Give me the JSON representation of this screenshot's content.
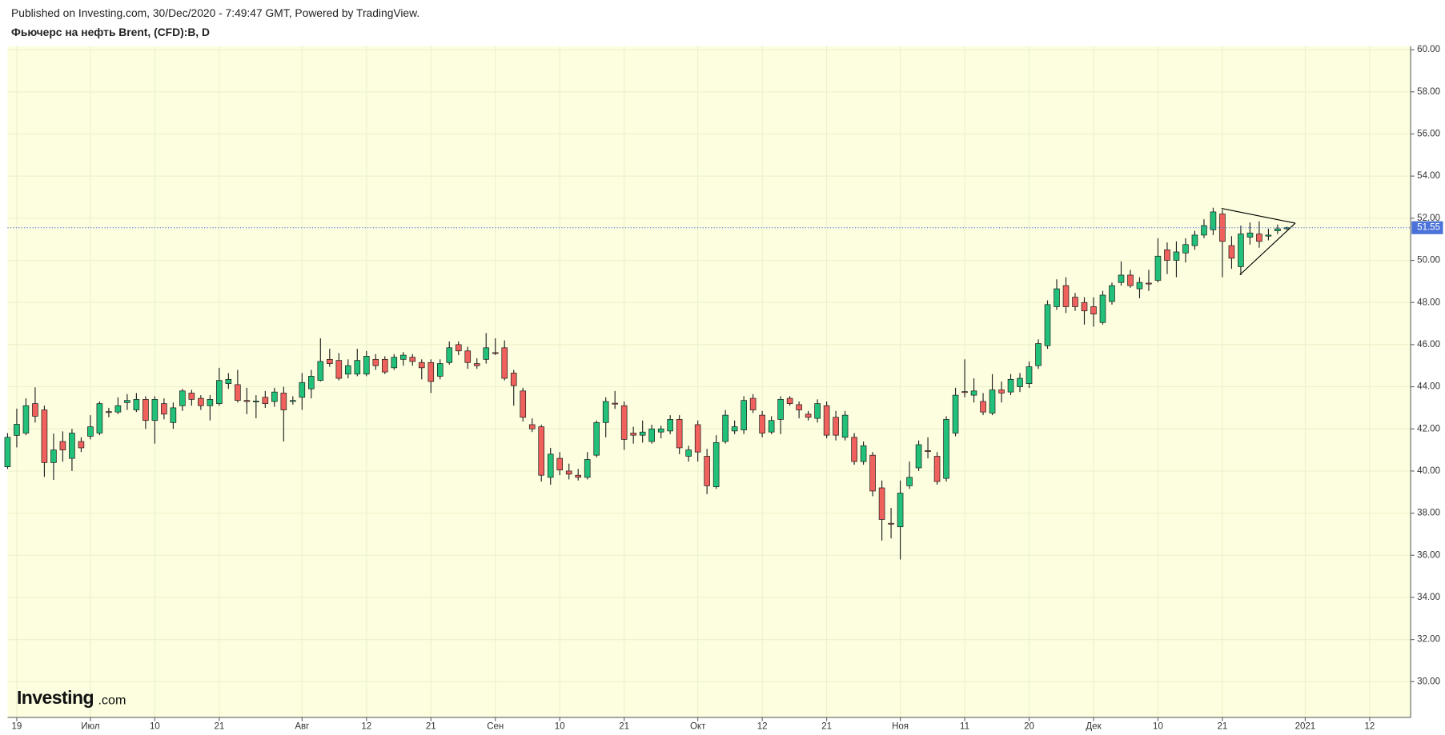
{
  "chart_data": {
    "type": "candlestick",
    "subtitle": "Published on Investing.com, 30/Dec/2020 - 7:49:47 GMT, Powered by TradingView.",
    "title": "Фьючерс на нефть Brent, (CFD):B, D",
    "watermark": [
      "Investing",
      ".com"
    ],
    "up_color": "#22c17a",
    "down_color": "#f0605c",
    "grid": true,
    "categories": [
      null,
      "19",
      null,
      null,
      null,
      null,
      null,
      null,
      null,
      "Июл",
      null,
      null,
      null,
      null,
      null,
      null,
      "10",
      null,
      null,
      null,
      null,
      null,
      null,
      "21",
      null,
      null,
      null,
      null,
      null,
      null,
      null,
      null,
      "Авг",
      null,
      null,
      null,
      null,
      null,
      null,
      "12",
      null,
      null,
      null,
      null,
      null,
      null,
      "21",
      null,
      null,
      null,
      null,
      null,
      null,
      "Сен",
      null,
      null,
      null,
      null,
      null,
      null,
      "10",
      null,
      null,
      null,
      null,
      null,
      null,
      "21",
      null,
      null,
      null,
      null,
      null,
      null,
      null,
      "Окт",
      null,
      null,
      null,
      null,
      null,
      null,
      "12",
      null,
      null,
      null,
      null,
      null,
      null,
      "21",
      null,
      null,
      null,
      null,
      null,
      null,
      null,
      "Ноя",
      null,
      null,
      null,
      null,
      null,
      null,
      "11",
      null,
      null,
      null,
      null,
      null,
      null,
      "20",
      null,
      null,
      null,
      null,
      null,
      null,
      "Дек",
      null,
      null,
      null,
      null,
      null,
      null,
      "10",
      null,
      null,
      null,
      null,
      null,
      null,
      "21",
      null,
      null,
      null,
      null,
      null,
      null,
      null,
      null,
      "2021",
      null,
      null,
      null,
      null,
      null,
      null,
      "12",
      null,
      null,
      null
    ],
    "open": [
      40.2,
      41.69,
      41.8,
      43.2,
      42.9,
      40.4,
      41.4,
      40.6,
      41.4,
      41.65,
      41.8,
      42.82,
      42.8,
      43.25,
      42.9,
      43.4,
      42.4,
      43.2,
      42.3,
      43.1,
      43.7,
      43.45,
      43.1,
      43.2,
      44.15,
      44.1,
      43.35,
      43.3,
      43.5,
      43.3,
      43.7,
      43.3,
      43.5,
      43.9,
      44.3,
      45.3,
      45.25,
      44.6,
      44.6,
      44.6,
      45.3,
      45.3,
      44.9,
      45.3,
      45.4,
      45.15,
      45.15,
      44.5,
      45.15,
      46.0,
      45.7,
      45.1,
      45.3,
      45.62,
      45.85,
      44.65,
      43.8,
      42.2,
      42.1,
      39.7,
      40.6,
      40.0,
      39.8,
      39.7,
      40.75,
      42.3,
      43.22,
      43.1,
      41.8,
      41.7,
      41.4,
      41.85,
      41.9,
      42.45,
      40.7,
      42.2,
      40.7,
      39.25,
      41.4,
      41.9,
      41.95,
      43.45,
      42.65,
      41.85,
      42.45,
      43.45,
      43.15,
      42.7,
      42.5,
      43.1,
      42.55,
      41.6,
      41.6,
      40.45,
      40.75,
      39.2,
      37.52,
      37.35,
      39.3,
      40.15,
      40.97,
      40.7,
      39.65,
      41.8,
      43.77,
      43.6,
      43.3,
      42.75,
      43.85,
      43.75,
      44.0,
      44.15,
      45.0,
      45.95,
      47.8,
      48.8,
      48.25,
      48.0,
      47.8,
      47.05,
      48.05,
      48.95,
      49.3,
      48.65,
      48.92,
      49.05,
      50.5,
      50.0,
      50.35,
      50.7,
      51.2,
      51.45,
      52.2,
      50.7,
      49.7,
      51.1,
      51.25,
      51.15,
      51.4,
      51.5,
      null,
      null,
      null,
      null,
      null,
      null,
      null,
      null,
      null,
      null,
      null,
      null
    ],
    "high": [
      41.8,
      42.96,
      43.45,
      43.97,
      43.1,
      41.78,
      41.88,
      42.0,
      41.6,
      42.65,
      43.3,
      43.0,
      43.5,
      43.65,
      43.7,
      43.55,
      43.55,
      43.45,
      43.25,
      43.9,
      43.85,
      43.6,
      43.6,
      44.9,
      44.65,
      44.8,
      43.95,
      43.6,
      43.8,
      43.95,
      44.0,
      43.55,
      44.65,
      44.8,
      46.3,
      45.8,
      45.6,
      45.3,
      45.8,
      45.7,
      45.55,
      45.45,
      45.55,
      45.65,
      45.55,
      45.3,
      45.3,
      45.3,
      46.15,
      46.15,
      45.9,
      45.35,
      46.55,
      46.3,
      46.2,
      44.8,
      43.95,
      42.5,
      42.2,
      41.1,
      40.9,
      40.35,
      40.1,
      40.9,
      42.4,
      43.5,
      43.8,
      43.3,
      42.1,
      42.4,
      42.2,
      42.15,
      42.65,
      42.65,
      41.2,
      42.4,
      41.05,
      41.7,
      42.9,
      42.4,
      43.55,
      43.65,
      42.85,
      42.6,
      43.55,
      43.55,
      43.3,
      42.85,
      43.4,
      43.3,
      42.85,
      42.85,
      41.8,
      41.4,
      40.9,
      39.55,
      38.25,
      39.55,
      40.45,
      41.45,
      41.6,
      40.9,
      42.6,
      43.95,
      45.3,
      44.4,
      43.7,
      44.6,
      44.25,
      44.6,
      44.65,
      45.2,
      46.25,
      48.1,
      49.1,
      49.2,
      48.45,
      48.25,
      48.25,
      48.55,
      48.95,
      49.95,
      49.55,
      49.2,
      49.55,
      51.05,
      50.85,
      50.9,
      51.05,
      51.4,
      51.95,
      52.5,
      52.4,
      51.15,
      51.65,
      51.8,
      51.85,
      51.5,
      51.7,
      51.6,
      null,
      null,
      null,
      null,
      null,
      null,
      null,
      null,
      null,
      null,
      null,
      null
    ],
    "low": [
      40.1,
      41.12,
      41.7,
      42.3,
      39.72,
      39.58,
      40.44,
      40.0,
      40.9,
      41.5,
      41.7,
      42.55,
      42.7,
      42.9,
      42.8,
      42.0,
      41.3,
      42.45,
      42.0,
      42.85,
      43.1,
      42.9,
      42.4,
      43.1,
      43.9,
      43.25,
      42.7,
      42.5,
      43.0,
      43.05,
      41.4,
      43.15,
      42.9,
      43.45,
      44.25,
      44.95,
      44.3,
      44.4,
      44.5,
      44.5,
      44.8,
      44.6,
      44.8,
      45.0,
      45.0,
      44.35,
      43.7,
      44.35,
      45.05,
      45.5,
      44.85,
      44.85,
      45.1,
      45.5,
      44.3,
      43.1,
      42.35,
      41.85,
      39.5,
      39.35,
      39.8,
      39.6,
      39.55,
      39.6,
      40.65,
      41.6,
      42.95,
      41.0,
      41.3,
      41.35,
      41.3,
      41.55,
      41.75,
      40.8,
      40.45,
      40.45,
      38.9,
      39.15,
      41.3,
      41.75,
      41.75,
      42.75,
      41.6,
      41.75,
      41.75,
      43.1,
      42.5,
      42.4,
      42.3,
      41.55,
      41.45,
      41.45,
      40.3,
      40.3,
      38.8,
      36.7,
      36.8,
      35.8,
      39.15,
      40.0,
      40.6,
      39.35,
      39.5,
      41.65,
      43.5,
      43.25,
      42.65,
      42.65,
      43.25,
      43.6,
      43.75,
      43.95,
      44.85,
      45.8,
      47.65,
      47.5,
      47.6,
      46.95,
      46.85,
      46.95,
      47.9,
      48.8,
      48.7,
      48.2,
      48.55,
      48.95,
      49.35,
      49.2,
      49.9,
      50.5,
      51.05,
      51.2,
      49.2,
      49.6,
      49.3,
      50.75,
      50.6,
      50.95,
      51.25,
      51.45,
      null,
      null,
      null,
      null,
      null,
      null,
      null,
      null,
      null,
      null,
      null,
      null
    ],
    "close": [
      41.6,
      42.22,
      43.1,
      42.6,
      40.4,
      41.0,
      41.0,
      41.8,
      41.1,
      42.1,
      43.2,
      42.78,
      43.1,
      43.35,
      43.4,
      42.4,
      43.4,
      42.7,
      43.0,
      43.8,
      43.4,
      43.1,
      43.4,
      44.3,
      44.35,
      43.35,
      43.3,
      43.32,
      43.2,
      43.75,
      42.9,
      43.35,
      44.2,
      44.5,
      45.2,
      45.1,
      44.4,
      45.0,
      45.25,
      45.45,
      45.0,
      44.7,
      45.4,
      45.5,
      45.2,
      44.9,
      44.25,
      45.1,
      45.85,
      45.7,
      45.15,
      45.0,
      45.85,
      45.58,
      44.4,
      44.05,
      42.55,
      42.0,
      39.8,
      40.8,
      40.05,
      39.85,
      39.7,
      40.55,
      42.3,
      43.3,
      43.18,
      41.5,
      41.7,
      41.85,
      42.0,
      42.0,
      42.45,
      41.1,
      41.0,
      40.9,
      39.3,
      41.35,
      42.65,
      42.1,
      43.35,
      42.9,
      41.8,
      42.4,
      43.4,
      43.2,
      42.9,
      42.55,
      43.2,
      41.7,
      41.7,
      42.65,
      40.45,
      41.2,
      39.05,
      37.7,
      37.48,
      38.95,
      39.7,
      41.25,
      40.93,
      39.5,
      42.45,
      43.6,
      43.73,
      43.8,
      42.8,
      43.85,
      43.7,
      44.35,
      44.4,
      44.95,
      46.05,
      47.9,
      48.65,
      47.8,
      47.8,
      47.6,
      47.45,
      48.35,
      48.8,
      49.3,
      48.8,
      48.95,
      48.88,
      50.2,
      50.0,
      50.4,
      50.75,
      51.2,
      51.65,
      52.3,
      50.9,
      50.1,
      51.25,
      51.3,
      50.9,
      51.2,
      51.5,
      51.55,
      null,
      null,
      null,
      null,
      null,
      null,
      null,
      null,
      null,
      null,
      null,
      null
    ],
    "last_price": 51.55,
    "last_price_color": "#4a72d8",
    "ylim": [
      28.3,
      60.17
    ],
    "yticks": [
      {
        "value": 30,
        "label": "30.00"
      },
      {
        "value": 32,
        "label": "32.00"
      },
      {
        "value": 34,
        "label": "34.00"
      },
      {
        "value": 36,
        "label": "36.00"
      },
      {
        "value": 38,
        "label": "38.00"
      },
      {
        "value": 40,
        "label": "40.00"
      },
      {
        "value": 42,
        "label": "42.00"
      },
      {
        "value": 44,
        "label": "44.00"
      },
      {
        "value": 46,
        "label": "46.00"
      },
      {
        "value": 48,
        "label": "48.00"
      },
      {
        "value": 50,
        "label": "50.00"
      },
      {
        "value": 52,
        "label": "52.00"
      },
      {
        "value": 54,
        "label": "54.00"
      },
      {
        "value": 56,
        "label": "56.00"
      },
      {
        "value": 58,
        "label": "58.00"
      },
      {
        "value": 60,
        "label": "60.00"
      }
    ]
  }
}
